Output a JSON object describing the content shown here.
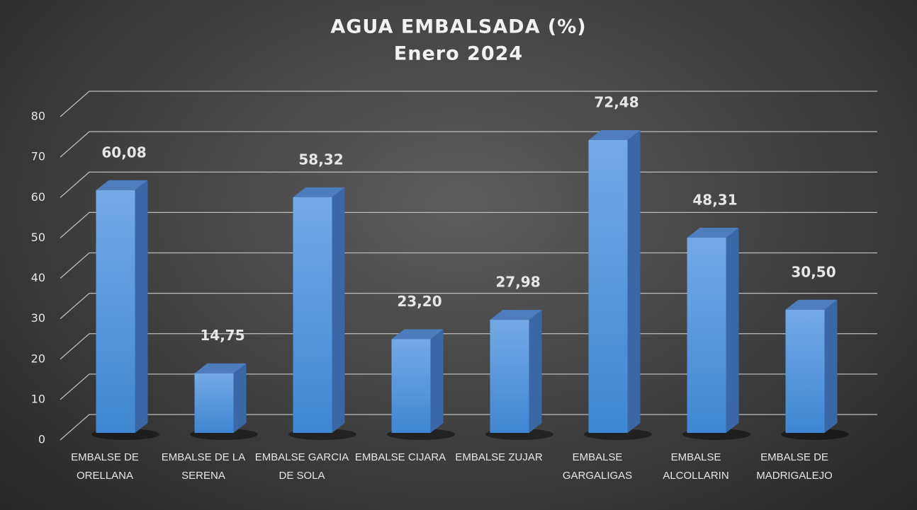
{
  "chart_data": {
    "type": "bar3d",
    "title": "AGUA EMBALSADA (%)",
    "subtitle": "Enero 2024",
    "categories": [
      "EMBALSE DE ORELLANA",
      "EMBALSE DE LA SERENA",
      "EMBALSE GARCIA DE SOLA",
      "EMBALSE CIJARA",
      "EMBALSE ZUJAR",
      "EMBALSE GARGALIGAS",
      "EMBALSE ALCOLLARIN",
      "EMBALSE DE MADRIGALEJO"
    ],
    "values": [
      60.08,
      14.75,
      58.32,
      23.2,
      27.98,
      72.48,
      48.31,
      30.5
    ],
    "value_labels": [
      "60,08",
      "14,75",
      "58,32",
      "23,20",
      "27,98",
      "72,48",
      "48,31",
      "30,50"
    ],
    "color": "#5b9bdf",
    "ylim": [
      0,
      80
    ],
    "yticks": [
      0,
      10,
      20,
      30,
      40,
      50,
      60,
      70,
      80
    ],
    "grid": true
  }
}
